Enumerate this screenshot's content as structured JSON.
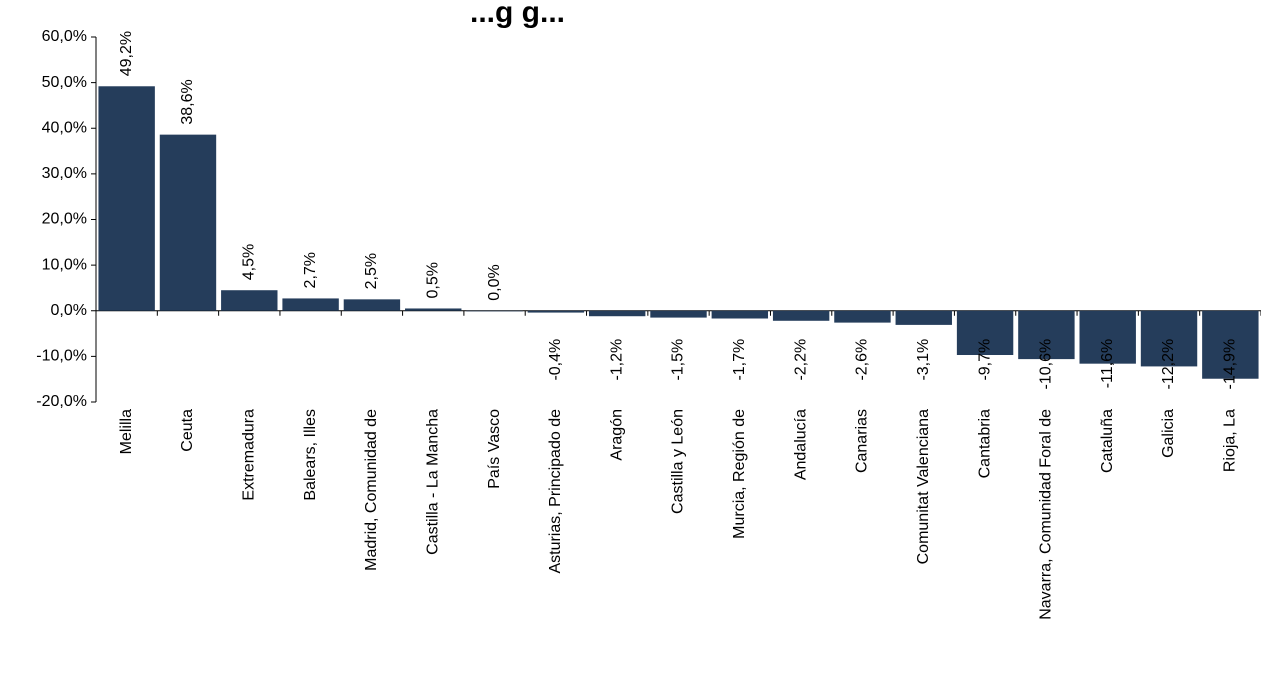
{
  "chart_data": {
    "type": "bar",
    "title": "...g        g...",
    "categories": [
      "Melilla",
      "Ceuta",
      "Extremadura",
      "Balears, Illes",
      "Madrid, Comunidad de",
      "Castilla - La Mancha",
      "País Vasco",
      "Asturias, Principado de",
      "Aragón",
      "Castilla y León",
      "Murcia, Región de",
      "Andalucía",
      "Canarias",
      "Comunitat Valenciana",
      "Cantabria",
      "Navarra, Comunidad Foral de",
      "Cataluña",
      "Galicia",
      "Rioja, La"
    ],
    "values": [
      49.2,
      38.6,
      4.5,
      2.7,
      2.5,
      0.5,
      0.0,
      -0.4,
      -1.2,
      -1.5,
      -1.7,
      -2.2,
      -2.6,
      -3.1,
      -9.7,
      -10.6,
      -11.6,
      -12.2,
      -14.9
    ],
    "data_labels": [
      "49,2%",
      "38,6%",
      "4,5%",
      "2,7%",
      "2,5%",
      "0,5%",
      "0,0%",
      "-0,4%",
      "-1,2%",
      "-1,5%",
      "-1,7%",
      "-2,2%",
      "-2,6%",
      "-3,1%",
      "-9,7%",
      "-10,6%",
      "-11,6%",
      "-12,2%",
      "-14,9%"
    ],
    "yticks": [
      60,
      50,
      40,
      30,
      20,
      10,
      0,
      -10,
      -20
    ],
    "ytick_labels": [
      "60,0%",
      "50,0%",
      "40,0%",
      "30,0%",
      "20,0%",
      "10,0%",
      "0,0%",
      "-10,0%",
      "-20,0%"
    ],
    "ylim": [
      -20,
      60
    ],
    "grid": false,
    "legend": "none",
    "bar_color": "#253D5B"
  }
}
